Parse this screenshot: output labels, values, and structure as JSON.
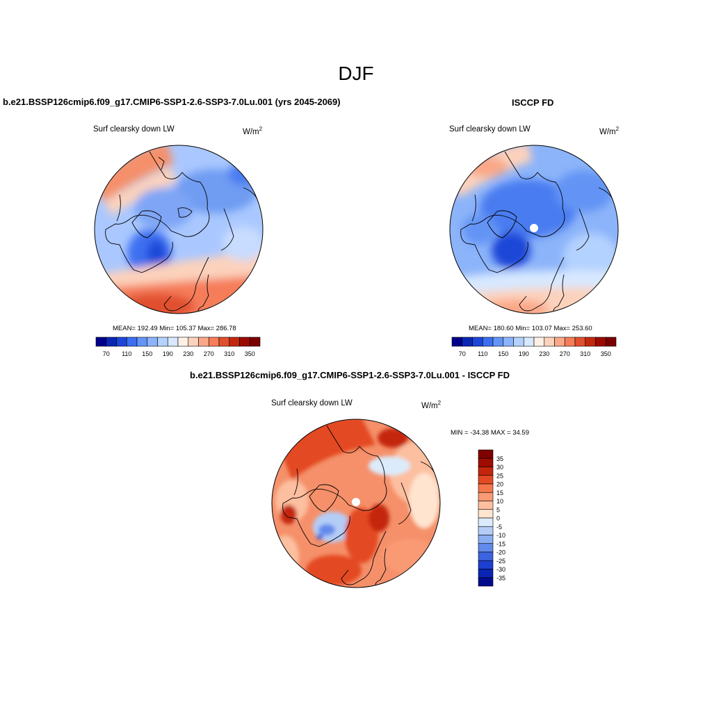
{
  "figure": {
    "title": "DJF",
    "season": "DJF"
  },
  "colors": {
    "cb_absolute": [
      "#00008b",
      "#0a28b4",
      "#1e46d7",
      "#3c6ef0",
      "#6494f5",
      "#8cb4fa",
      "#b4d2ff",
      "#d7e8ff",
      "#fff0e6",
      "#fcd2bc",
      "#faa888",
      "#f57d5a",
      "#e0502e",
      "#c3280f",
      "#9b0a00",
      "#7a0000"
    ],
    "cb_diff": [
      "#7f0000",
      "#9e0d00",
      "#c4250c",
      "#e34a24",
      "#f5764c",
      "#fa9a74",
      "#fcbf9f",
      "#ffe4d0",
      "#dcebfb",
      "#b4cdf7",
      "#8aaef2",
      "#6289ec",
      "#3c64e0",
      "#1d3fd0",
      "#0a24b4",
      "#000c8c"
    ]
  },
  "chart_data": [
    {
      "type": "heatmap",
      "projection": "north polar stereographic",
      "header": "b.e21.BSSP126cmip6.f09_g17.CMIP6-SSP1-2.6-SSP3-7.0Lu.001 (yrs 2045-2069)",
      "title": "Surf clearsky down LW",
      "units_base": "W/m",
      "units_exp": "2",
      "stats": "MEAN= 192.49  Min= 105.37  Max= 286.78",
      "mean": 192.49,
      "min": 105.37,
      "max": 286.78,
      "colorbar_levels": [
        70,
        90,
        110,
        130,
        150,
        170,
        190,
        210,
        230,
        250,
        270,
        290,
        310,
        330,
        350
      ],
      "colorbar_ticklabels": [
        "70",
        "110",
        "150",
        "190",
        "230",
        "270",
        "310",
        "350"
      ],
      "colorbar_orientation": "horizontal"
    },
    {
      "type": "heatmap",
      "projection": "north polar stereographic",
      "header": "ISCCP FD",
      "title": "Surf clearsky down LW",
      "units_base": "W/m",
      "units_exp": "2",
      "stats": "MEAN= 180.60  Min= 103.07  Max= 253.60",
      "mean": 180.6,
      "min": 103.07,
      "max": 253.6,
      "colorbar_levels": [
        70,
        90,
        110,
        130,
        150,
        170,
        190,
        210,
        230,
        250,
        270,
        290,
        310,
        330,
        350
      ],
      "colorbar_ticklabels": [
        "70",
        "110",
        "150",
        "190",
        "230",
        "270",
        "310",
        "350"
      ],
      "colorbar_orientation": "horizontal"
    },
    {
      "type": "heatmap",
      "projection": "north polar stereographic",
      "header": "b.e21.BSSP126cmip6.f09_g17.CMIP6-SSP1-2.6-SSP3-7.0Lu.001 - ISCCP FD",
      "title": "Surf clearsky down LW",
      "units_base": "W/m",
      "units_exp": "2",
      "stats": "MIN = -34.38 MAX =  34.59",
      "min": -34.38,
      "max": 34.59,
      "colorbar_ticklabels": [
        "35",
        "30",
        "25",
        "20",
        "15",
        "10",
        "5",
        "0",
        "-5",
        "-10",
        "-15",
        "-20",
        "-25",
        "-30",
        "-35"
      ],
      "colorbar_orientation": "vertical"
    }
  ]
}
